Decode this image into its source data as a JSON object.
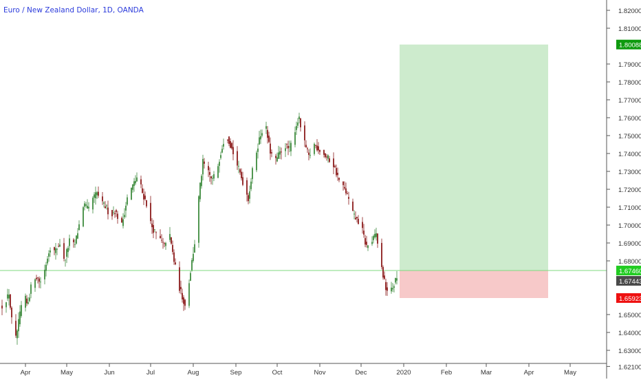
{
  "header": {
    "title": "Euro / New Zealand Dollar, 1D, OANDA"
  },
  "colors": {
    "up": "#3d8a3d",
    "down": "#8b1a1a",
    "profit_zone": "#cdebcd",
    "loss_zone": "#f7c9c9",
    "target_tag": "#0e9a0e",
    "entry_tag": "#22cc22",
    "last_price_tag": "#4a4a4a",
    "stop_tag": "#ee1111",
    "entry_line": "#7fd87f",
    "axis_line": "#555555",
    "tick_text": "#333333"
  },
  "chart_data": {
    "type": "candlestick",
    "title": "Euro / New Zealand Dollar, 1D, OANDA",
    "y_ticks": [
      "1.82000",
      "1.81000",
      "1.79000",
      "1.78000",
      "1.77000",
      "1.76000",
      "1.75000",
      "1.74000",
      "1.73000",
      "1.72000",
      "1.71000",
      "1.70000",
      "1.69000",
      "1.68000",
      "1.65000",
      "1.64000",
      "1.63000",
      "1.62100"
    ],
    "ylim": [
      1.621,
      1.825
    ],
    "x_ticks": [
      "Apr",
      "May",
      "Jun",
      "Jul",
      "Aug",
      "Sep",
      "Oct",
      "Nov",
      "Dec",
      "2020",
      "Feb",
      "Mar",
      "Apr",
      "May"
    ],
    "x_tick_positions": [
      "2019-04-01",
      "2019-05-01",
      "2019-06-01",
      "2019-07-01",
      "2019-08-01",
      "2019-09-01",
      "2019-10-01",
      "2019-11-01",
      "2019-12-01",
      "2020-01-01",
      "2020-02-01",
      "2020-03-01",
      "2020-04-01",
      "2020-05-01"
    ],
    "price_tags": {
      "target": "1.80088",
      "entry": "1.67460",
      "last": "1.67443",
      "stop": "1.65923"
    },
    "position": {
      "type": "long",
      "entry": 1.6746,
      "target": 1.80088,
      "stop": 1.65923,
      "start_date": "2019-12-29",
      "end_date": "2020-04-15"
    },
    "series": [
      {
        "start": "2019-03-15",
        "end": "2019-03-20",
        "values": [
          1.655,
          1.662,
          1.658,
          1.662
        ]
      },
      {
        "start": "2019-03-20",
        "end": "2019-03-28",
        "values": [
          1.662,
          1.632,
          1.65
        ]
      },
      {
        "start": "2019-03-28",
        "end": "2019-04-05",
        "values": [
          1.65,
          1.662,
          1.655,
          1.665
        ]
      },
      {
        "start": "2019-04-05",
        "end": "2019-04-15",
        "values": [
          1.665,
          1.672,
          1.668,
          1.675
        ]
      },
      {
        "start": "2019-04-15",
        "end": "2019-04-26",
        "values": [
          1.675,
          1.688,
          1.685,
          1.69
        ]
      },
      {
        "start": "2019-04-26",
        "end": "2019-04-30",
        "values": [
          1.69,
          1.678,
          1.682
        ]
      },
      {
        "start": "2019-04-30",
        "end": "2019-05-10",
        "values": [
          1.682,
          1.692,
          1.688,
          1.7
        ]
      },
      {
        "start": "2019-05-10",
        "end": "2019-05-20",
        "values": [
          1.7,
          1.712,
          1.708,
          1.715
        ]
      },
      {
        "start": "2019-05-20",
        "end": "2019-06-05",
        "values": [
          1.715,
          1.718,
          1.712,
          1.71,
          1.705,
          1.708
        ]
      },
      {
        "start": "2019-06-05",
        "end": "2019-06-10",
        "values": [
          1.708,
          1.7
        ]
      },
      {
        "start": "2019-06-10",
        "end": "2019-06-22",
        "values": [
          1.7,
          1.715,
          1.722,
          1.728
        ]
      },
      {
        "start": "2019-06-22",
        "end": "2019-06-28",
        "values": [
          1.728,
          1.718,
          1.712
        ]
      },
      {
        "start": "2019-06-28",
        "end": "2019-07-08",
        "values": [
          1.712,
          1.7,
          1.695,
          1.692
        ]
      },
      {
        "start": "2019-07-08",
        "end": "2019-07-14",
        "values": [
          1.692,
          1.688,
          1.698
        ]
      },
      {
        "start": "2019-07-14",
        "end": "2019-07-26",
        "values": [
          1.698,
          1.68,
          1.665,
          1.655
        ]
      },
      {
        "start": "2019-07-26",
        "end": "2019-08-02",
        "values": [
          1.655,
          1.665,
          1.678,
          1.69
        ]
      },
      {
        "start": "2019-08-02",
        "end": "2019-08-08",
        "values": [
          1.69,
          1.708,
          1.722,
          1.735
        ]
      },
      {
        "start": "2019-08-08",
        "end": "2019-08-18",
        "values": [
          1.735,
          1.73,
          1.725,
          1.73
        ]
      },
      {
        "start": "2019-08-18",
        "end": "2019-08-28",
        "values": [
          1.73,
          1.742,
          1.752,
          1.745
        ]
      },
      {
        "start": "2019-08-28",
        "end": "2019-09-10",
        "values": [
          1.745,
          1.735,
          1.725,
          1.715
        ]
      },
      {
        "start": "2019-09-10",
        "end": "2019-09-22",
        "values": [
          1.715,
          1.735,
          1.748,
          1.758
        ]
      },
      {
        "start": "2019-09-22",
        "end": "2019-10-10",
        "values": [
          1.758,
          1.742,
          1.735,
          1.74,
          1.745,
          1.742
        ]
      },
      {
        "start": "2019-10-10",
        "end": "2019-10-20",
        "values": [
          1.742,
          1.752,
          1.76,
          1.748
        ]
      },
      {
        "start": "2019-10-20",
        "end": "2019-11-01",
        "values": [
          1.748,
          1.738,
          1.745,
          1.742
        ]
      },
      {
        "start": "2019-11-01",
        "end": "2019-11-15",
        "values": [
          1.742,
          1.738,
          1.735,
          1.725
        ]
      },
      {
        "start": "2019-11-15",
        "end": "2019-12-01",
        "values": [
          1.725,
          1.718,
          1.705,
          1.7
        ]
      },
      {
        "start": "2019-12-01",
        "end": "2019-12-12",
        "values": [
          1.7,
          1.688,
          1.69,
          1.695
        ]
      },
      {
        "start": "2019-12-12",
        "end": "2019-12-29",
        "values": [
          1.695,
          1.678,
          1.665,
          1.662,
          1.668,
          1.675
        ]
      }
    ]
  }
}
